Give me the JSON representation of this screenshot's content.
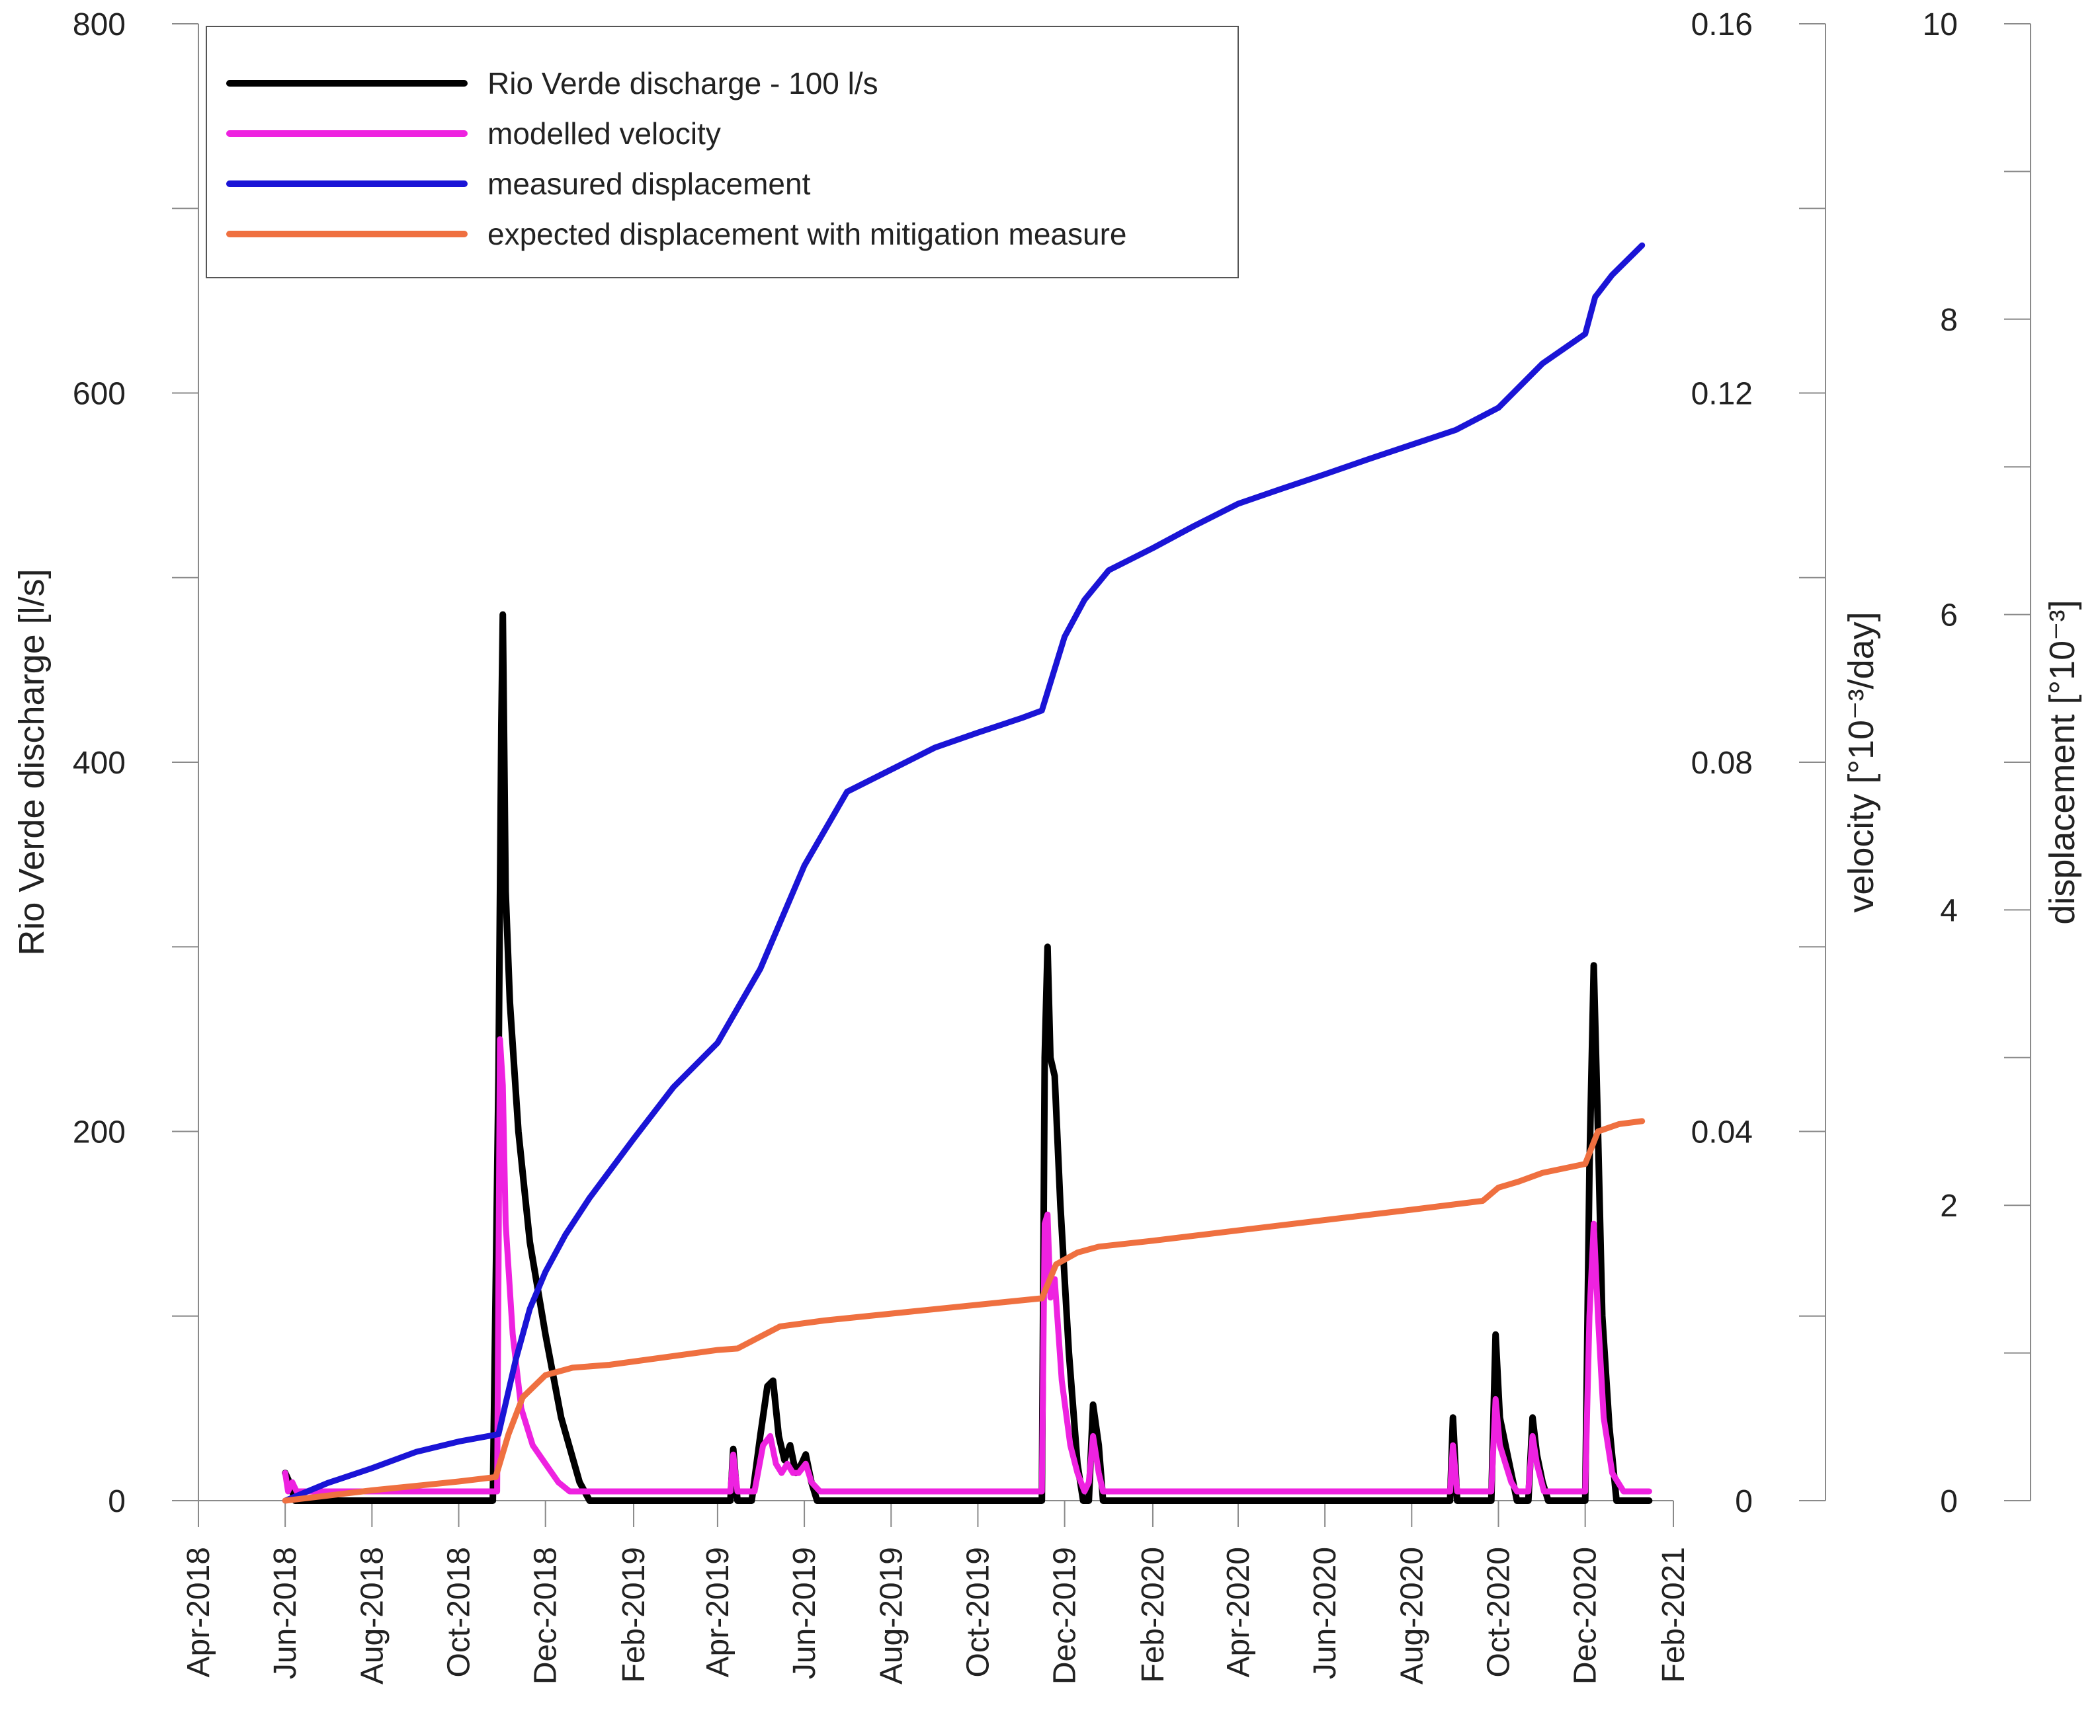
{
  "chart_data": {
    "type": "line",
    "title": "",
    "x_axis": {
      "label": "",
      "range": [
        "2018-04-01",
        "2021-02-01"
      ],
      "ticks": [
        "Apr-2018",
        "Jun-2018",
        "Aug-2018",
        "Oct-2018",
        "Dec-2018",
        "Feb-2019",
        "Apr-2019",
        "Jun-2019",
        "Aug-2019",
        "Oct-2019",
        "Dec-2019",
        "Feb-2020",
        "Apr-2020",
        "Jun-2020",
        "Aug-2020",
        "Oct-2020",
        "Dec-2020",
        "Feb-2021"
      ]
    },
    "y_axes": [
      {
        "id": "discharge",
        "label": "Rio Verde discharge [l/s]",
        "min": 0,
        "max": 800,
        "tick_labels": [
          "0",
          "200",
          "400",
          "600",
          "800"
        ],
        "tick_values": [
          0,
          200,
          400,
          600,
          800
        ],
        "minor_values": [
          100,
          300,
          500,
          700
        ]
      },
      {
        "id": "velocity",
        "label": "velocity [°10⁻³/day]",
        "min": 0,
        "max": 0.16,
        "tick_labels": [
          "0",
          "0.04",
          "0.08",
          "0.12",
          "0.16"
        ],
        "tick_values": [
          0,
          0.04,
          0.08,
          0.12,
          0.16
        ],
        "minor_values": [
          0.02,
          0.06,
          0.1,
          0.14
        ]
      },
      {
        "id": "displacement",
        "label": "displacement [°10⁻³]",
        "min": 0,
        "max": 10,
        "tick_labels": [
          "0",
          "2",
          "4",
          "6",
          "8",
          "10"
        ],
        "tick_values": [
          0,
          2,
          4,
          6,
          8,
          10
        ],
        "minor_values": [
          1,
          3,
          5,
          7,
          9
        ]
      }
    ],
    "legend": {
      "position": "top-left"
    },
    "series": [
      {
        "name": "Rio Verde discharge - 100 l/s",
        "axis": "discharge",
        "color": "#000000",
        "points": [
          [
            "2018-06-01",
            15
          ],
          [
            "2018-06-04",
            10
          ],
          [
            "2018-06-08",
            0
          ],
          [
            "2018-10-25",
            0
          ],
          [
            "2018-10-29",
            230
          ],
          [
            "2018-10-31",
            420
          ],
          [
            "2018-11-01",
            480
          ],
          [
            "2018-11-03",
            330
          ],
          [
            "2018-11-06",
            270
          ],
          [
            "2018-11-12",
            200
          ],
          [
            "2018-11-20",
            140
          ],
          [
            "2018-12-01",
            90
          ],
          [
            "2018-12-12",
            45
          ],
          [
            "2018-12-25",
            10
          ],
          [
            "2019-01-01",
            0
          ],
          [
            "2019-04-10",
            0
          ],
          [
            "2019-04-12",
            28
          ],
          [
            "2019-04-15",
            0
          ],
          [
            "2019-04-25",
            0
          ],
          [
            "2019-05-01",
            35
          ],
          [
            "2019-05-06",
            62
          ],
          [
            "2019-05-10",
            65
          ],
          [
            "2019-05-14",
            35
          ],
          [
            "2019-05-18",
            22
          ],
          [
            "2019-05-22",
            30
          ],
          [
            "2019-05-26",
            15
          ],
          [
            "2019-05-30",
            20
          ],
          [
            "2019-06-02",
            25
          ],
          [
            "2019-06-06",
            10
          ],
          [
            "2019-06-10",
            0
          ],
          [
            "2019-11-15",
            0
          ],
          [
            "2019-11-17",
            240
          ],
          [
            "2019-11-19",
            300
          ],
          [
            "2019-11-21",
            240
          ],
          [
            "2019-11-24",
            230
          ],
          [
            "2019-11-28",
            160
          ],
          [
            "2019-12-04",
            80
          ],
          [
            "2019-12-10",
            20
          ],
          [
            "2019-12-14",
            0
          ],
          [
            "2019-12-18",
            0
          ],
          [
            "2019-12-21",
            52
          ],
          [
            "2019-12-25",
            30
          ],
          [
            "2019-12-28",
            0
          ],
          [
            "2020-08-28",
            0
          ],
          [
            "2020-08-30",
            45
          ],
          [
            "2020-09-02",
            0
          ],
          [
            "2020-09-26",
            0
          ],
          [
            "2020-09-29",
            90
          ],
          [
            "2020-10-02",
            45
          ],
          [
            "2020-10-06",
            30
          ],
          [
            "2020-10-10",
            15
          ],
          [
            "2020-10-14",
            0
          ],
          [
            "2020-10-22",
            0
          ],
          [
            "2020-10-25",
            45
          ],
          [
            "2020-10-28",
            25
          ],
          [
            "2020-11-01",
            10
          ],
          [
            "2020-11-05",
            0
          ],
          [
            "2020-12-01",
            0
          ],
          [
            "2020-12-04",
            180
          ],
          [
            "2020-12-07",
            290
          ],
          [
            "2020-12-10",
            200
          ],
          [
            "2020-12-13",
            100
          ],
          [
            "2020-12-18",
            40
          ],
          [
            "2020-12-23",
            0
          ],
          [
            "2021-01-15",
            0
          ]
        ]
      },
      {
        "name": "modelled velocity",
        "axis": "velocity",
        "color": "#ee22e0",
        "points": [
          [
            "2018-06-01",
            0.003
          ],
          [
            "2018-06-03",
            0.001
          ],
          [
            "2018-06-06",
            0.002
          ],
          [
            "2018-06-09",
            0.001
          ],
          [
            "2018-10-28",
            0.001
          ],
          [
            "2018-10-30",
            0.05
          ],
          [
            "2018-11-01",
            0.045
          ],
          [
            "2018-11-03",
            0.03
          ],
          [
            "2018-11-08",
            0.018
          ],
          [
            "2018-11-14",
            0.01
          ],
          [
            "2018-11-22",
            0.006
          ],
          [
            "2018-12-01",
            0.004
          ],
          [
            "2018-12-10",
            0.002
          ],
          [
            "2018-12-18",
            0.001
          ],
          [
            "2019-04-10",
            0.001
          ],
          [
            "2019-04-12",
            0.005
          ],
          [
            "2019-04-15",
            0.001
          ],
          [
            "2019-04-27",
            0.001
          ],
          [
            "2019-05-03",
            0.006
          ],
          [
            "2019-05-08",
            0.007
          ],
          [
            "2019-05-12",
            0.004
          ],
          [
            "2019-05-16",
            0.003
          ],
          [
            "2019-05-20",
            0.004
          ],
          [
            "2019-05-24",
            0.003
          ],
          [
            "2019-05-28",
            0.003
          ],
          [
            "2019-06-02",
            0.004
          ],
          [
            "2019-06-06",
            0.002
          ],
          [
            "2019-06-12",
            0.001
          ],
          [
            "2019-11-15",
            0.001
          ],
          [
            "2019-11-17",
            0.03
          ],
          [
            "2019-11-19",
            0.031
          ],
          [
            "2019-11-21",
            0.022
          ],
          [
            "2019-11-24",
            0.024
          ],
          [
            "2019-11-29",
            0.013
          ],
          [
            "2019-12-05",
            0.006
          ],
          [
            "2019-12-10",
            0.003
          ],
          [
            "2019-12-15",
            0.001
          ],
          [
            "2019-12-18",
            0.002
          ],
          [
            "2019-12-21",
            0.007
          ],
          [
            "2019-12-25",
            0.003
          ],
          [
            "2019-12-28",
            0.001
          ],
          [
            "2020-08-28",
            0.001
          ],
          [
            "2020-08-30",
            0.006
          ],
          [
            "2020-09-02",
            0.001
          ],
          [
            "2020-09-26",
            0.001
          ],
          [
            "2020-09-29",
            0.011
          ],
          [
            "2020-10-02",
            0.006
          ],
          [
            "2020-10-06",
            0.004
          ],
          [
            "2020-10-10",
            0.002
          ],
          [
            "2020-10-14",
            0.001
          ],
          [
            "2020-10-22",
            0.001
          ],
          [
            "2020-10-25",
            0.007
          ],
          [
            "2020-10-28",
            0.004
          ],
          [
            "2020-11-02",
            0.001
          ],
          [
            "2020-12-01",
            0.001
          ],
          [
            "2020-12-04",
            0.02
          ],
          [
            "2020-12-07",
            0.03
          ],
          [
            "2020-12-10",
            0.02
          ],
          [
            "2020-12-14",
            0.009
          ],
          [
            "2020-12-20",
            0.003
          ],
          [
            "2020-12-28",
            0.001
          ],
          [
            "2021-01-15",
            0.001
          ]
        ]
      },
      {
        "name": "measured displacement",
        "axis": "displacement",
        "color": "#1a14d6",
        "points": [
          [
            "2018-06-01",
            0.0
          ],
          [
            "2018-07-01",
            0.12
          ],
          [
            "2018-08-01",
            0.22
          ],
          [
            "2018-09-01",
            0.33
          ],
          [
            "2018-10-01",
            0.4
          ],
          [
            "2018-10-29",
            0.45
          ],
          [
            "2018-11-10",
            0.95
          ],
          [
            "2018-11-20",
            1.3
          ],
          [
            "2018-12-01",
            1.55
          ],
          [
            "2018-12-15",
            1.8
          ],
          [
            "2019-01-01",
            2.05
          ],
          [
            "2019-02-01",
            2.45
          ],
          [
            "2019-03-01",
            2.8
          ],
          [
            "2019-04-01",
            3.1
          ],
          [
            "2019-05-01",
            3.6
          ],
          [
            "2019-06-01",
            4.3
          ],
          [
            "2019-07-01",
            4.8
          ],
          [
            "2019-08-01",
            4.95
          ],
          [
            "2019-09-01",
            5.1
          ],
          [
            "2019-10-01",
            5.2
          ],
          [
            "2019-11-01",
            5.3
          ],
          [
            "2019-11-15",
            5.35
          ],
          [
            "2019-12-01",
            5.85
          ],
          [
            "2019-12-15",
            6.1
          ],
          [
            "2020-01-01",
            6.3
          ],
          [
            "2020-02-01",
            6.45
          ],
          [
            "2020-03-01",
            6.6
          ],
          [
            "2020-04-01",
            6.75
          ],
          [
            "2020-05-01",
            6.85
          ],
          [
            "2020-06-01",
            6.95
          ],
          [
            "2020-07-01",
            7.05
          ],
          [
            "2020-08-01",
            7.15
          ],
          [
            "2020-09-01",
            7.25
          ],
          [
            "2020-10-01",
            7.4
          ],
          [
            "2020-11-01",
            7.7
          ],
          [
            "2020-12-01",
            7.9
          ],
          [
            "2020-12-08",
            8.15
          ],
          [
            "2020-12-20",
            8.3
          ],
          [
            "2021-01-10",
            8.5
          ]
        ]
      },
      {
        "name": "expected displacement with mitigation measure",
        "axis": "displacement",
        "color": "#ef7040",
        "points": [
          [
            "2018-06-01",
            0.0
          ],
          [
            "2018-08-01",
            0.07
          ],
          [
            "2018-10-01",
            0.13
          ],
          [
            "2018-10-27",
            0.16
          ],
          [
            "2018-11-05",
            0.45
          ],
          [
            "2018-11-15",
            0.7
          ],
          [
            "2018-12-01",
            0.85
          ],
          [
            "2018-12-20",
            0.9
          ],
          [
            "2019-01-15",
            0.92
          ],
          [
            "2019-04-01",
            1.02
          ],
          [
            "2019-04-15",
            1.03
          ],
          [
            "2019-05-15",
            1.18
          ],
          [
            "2019-06-15",
            1.22
          ],
          [
            "2019-08-15",
            1.28
          ],
          [
            "2019-10-15",
            1.34
          ],
          [
            "2019-11-15",
            1.37
          ],
          [
            "2019-11-25",
            1.6
          ],
          [
            "2019-12-10",
            1.68
          ],
          [
            "2019-12-25",
            1.72
          ],
          [
            "2020-02-01",
            1.76
          ],
          [
            "2020-04-01",
            1.83
          ],
          [
            "2020-06-01",
            1.9
          ],
          [
            "2020-08-01",
            1.97
          ],
          [
            "2020-09-20",
            2.03
          ],
          [
            "2020-10-01",
            2.12
          ],
          [
            "2020-10-15",
            2.16
          ],
          [
            "2020-11-01",
            2.22
          ],
          [
            "2020-12-01",
            2.28
          ],
          [
            "2020-12-10",
            2.5
          ],
          [
            "2020-12-25",
            2.55
          ],
          [
            "2021-01-10",
            2.57
          ]
        ]
      }
    ]
  }
}
